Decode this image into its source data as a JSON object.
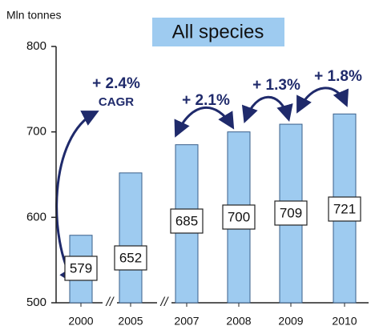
{
  "chart_data": {
    "type": "bar",
    "title": "All species",
    "y_axis_label": "Mln tonnes",
    "categories": [
      "2000",
      "2005",
      "2007",
      "2008",
      "2009",
      "2010"
    ],
    "values": [
      579,
      652,
      685,
      700,
      709,
      721
    ],
    "color": "#9ecbf0",
    "ylim": [
      500,
      800
    ],
    "yticks": [
      500,
      600,
      700,
      800
    ],
    "annotations": [
      "+ 2.4%",
      "CAGR",
      "+ 2.1%",
      "+ 1.3%",
      "+ 1.8%"
    ],
    "axis_breaks": [
      "//",
      "//"
    ]
  }
}
